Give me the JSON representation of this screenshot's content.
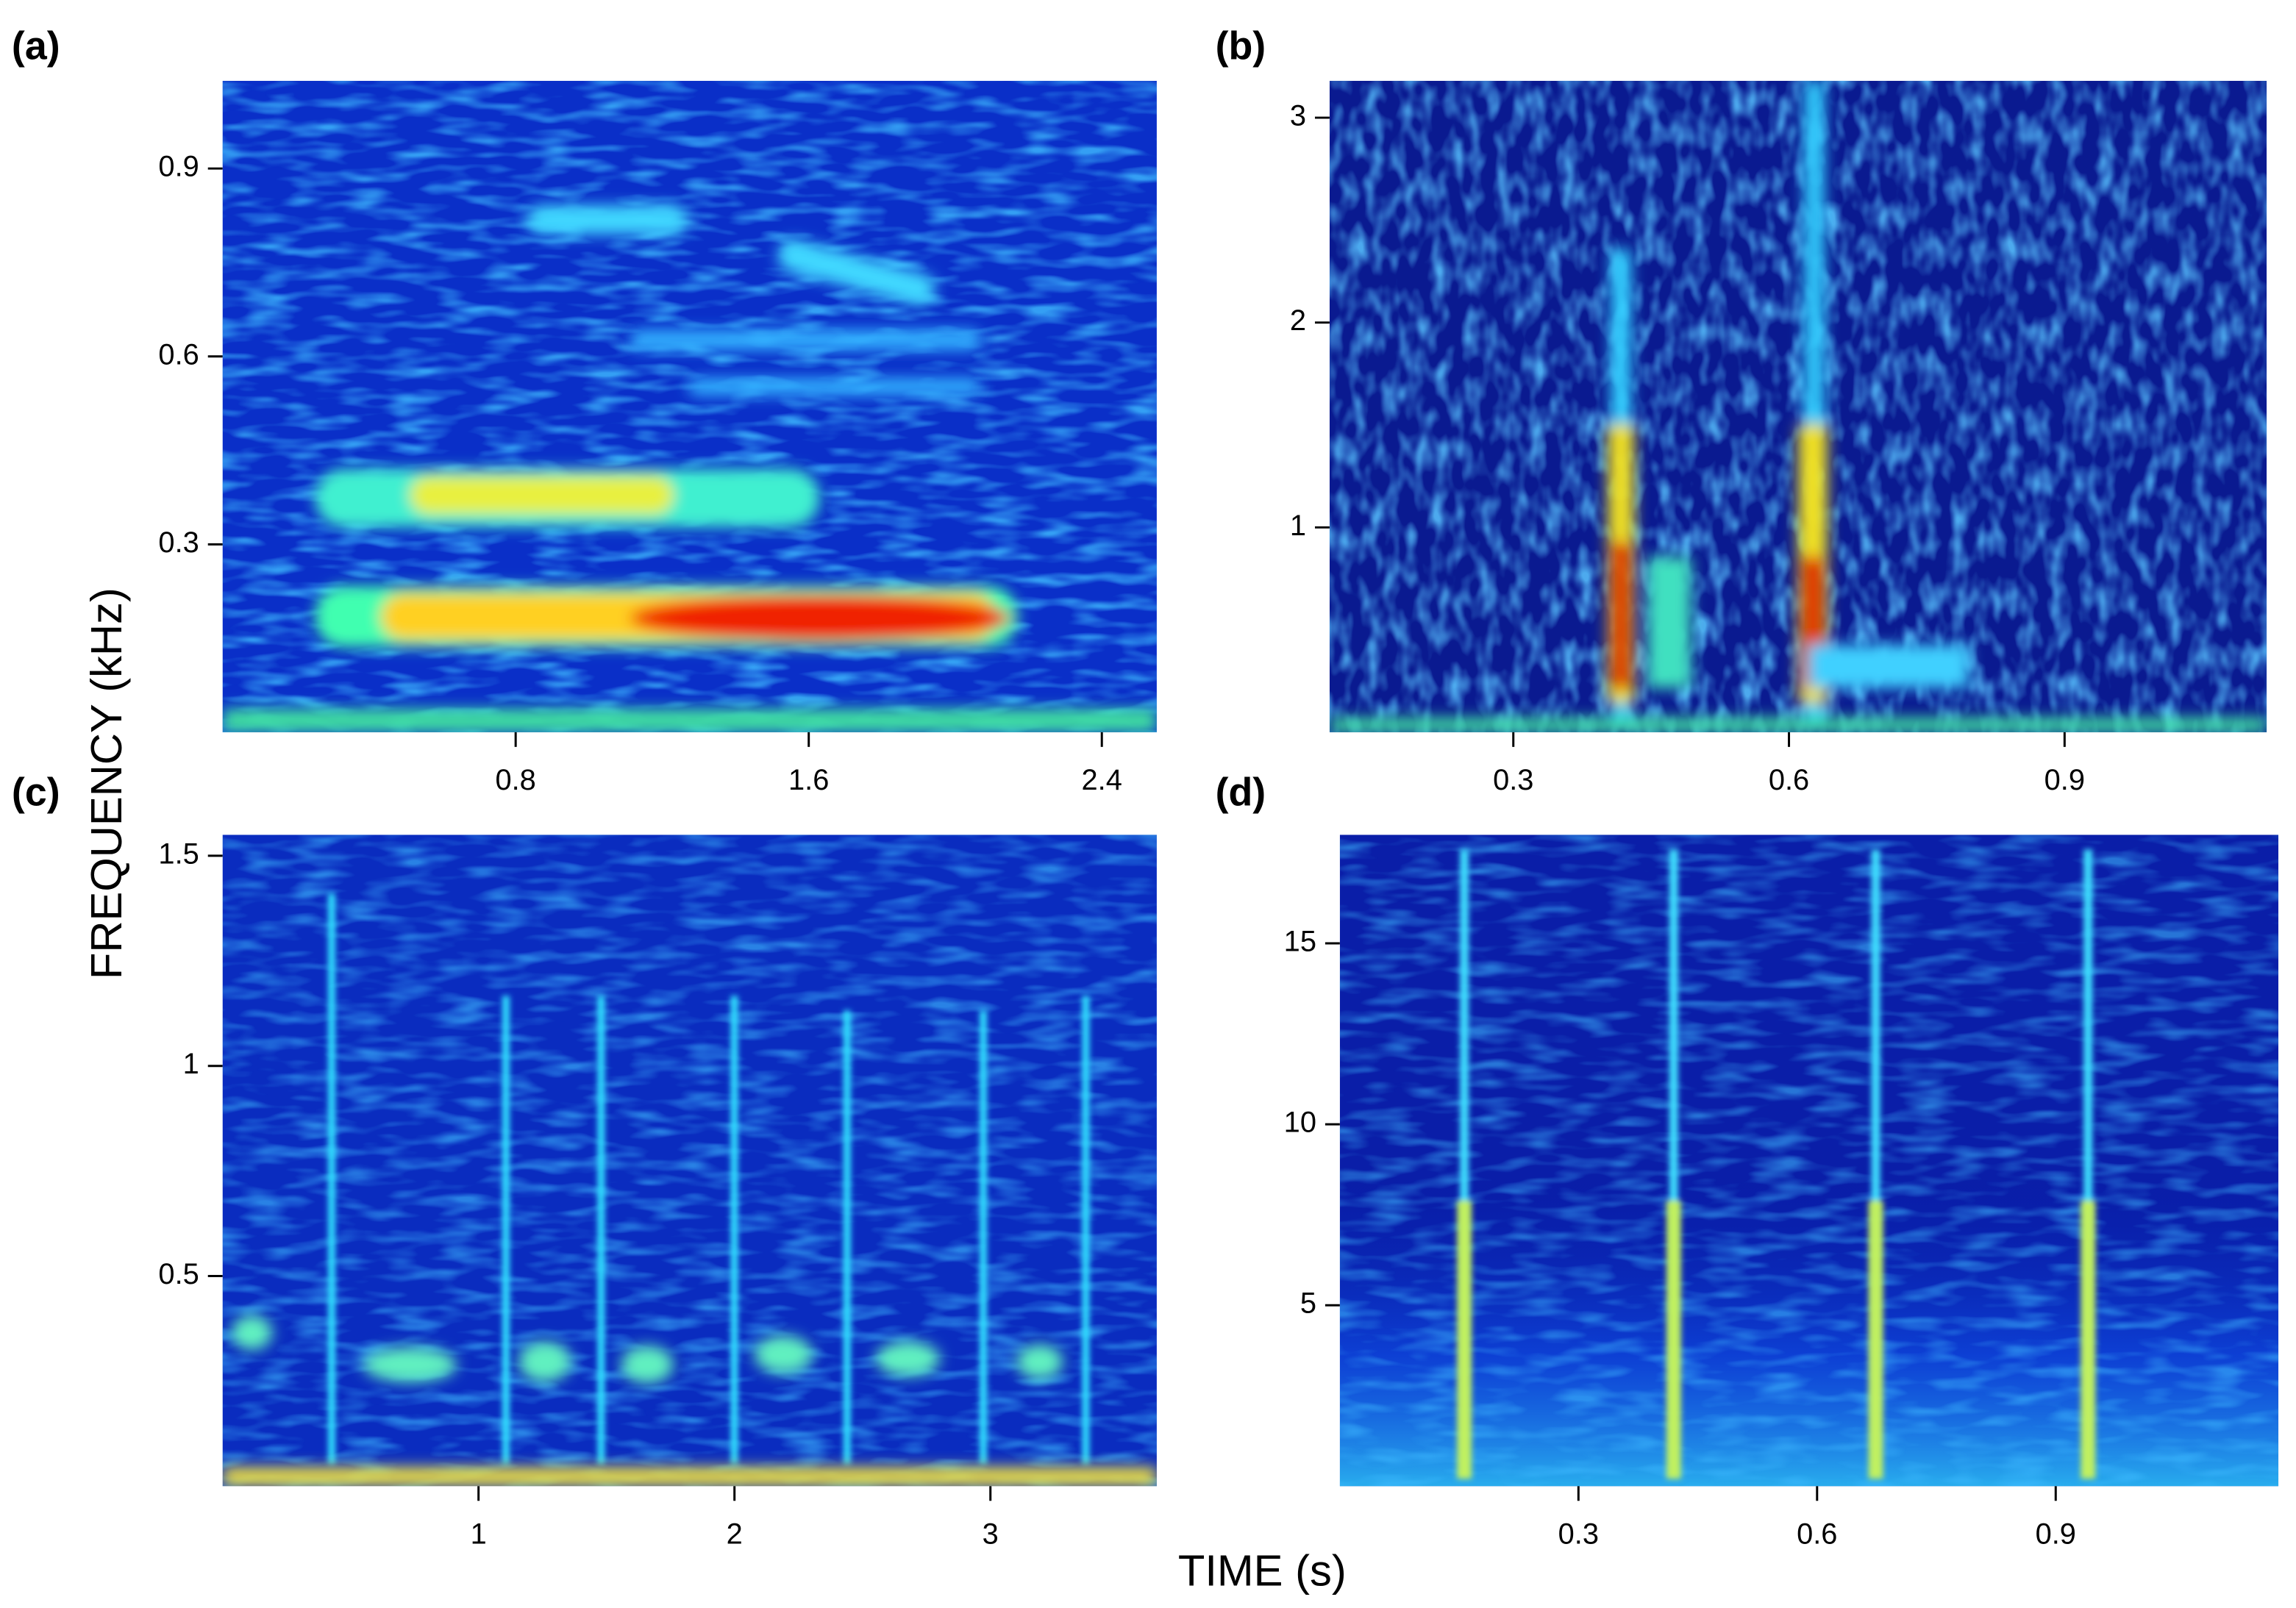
{
  "ylabel": "FREQUENCY (kHz)",
  "xlabel": "TIME (s)",
  "chart_data": [
    {
      "type": "spectrogram",
      "label": "(a)",
      "xlim": [
        0,
        2.55
      ],
      "ylim": [
        0,
        1.04
      ],
      "xticks": [
        0.8,
        1.6,
        2.4
      ],
      "yticks": [
        0.3,
        0.6,
        0.9
      ]
    },
    {
      "type": "spectrogram",
      "label": "(b)",
      "xlim": [
        0.1,
        1.12
      ],
      "ylim": [
        0,
        3.18
      ],
      "xticks": [
        0.3,
        0.6,
        0.9
      ],
      "yticks": [
        1,
        2,
        3
      ]
    },
    {
      "type": "spectrogram",
      "label": "(c)",
      "xlim": [
        0,
        3.65
      ],
      "ylim": [
        0,
        1.55
      ],
      "xticks": [
        1,
        2,
        3
      ],
      "yticks": [
        0.5,
        1,
        1.5
      ]
    },
    {
      "type": "spectrogram",
      "label": "(d)",
      "xlim": [
        0,
        1.18
      ],
      "ylim": [
        0,
        18
      ],
      "xticks": [
        0.3,
        0.6,
        0.9
      ],
      "yticks": [
        5,
        10,
        15
      ]
    }
  ]
}
